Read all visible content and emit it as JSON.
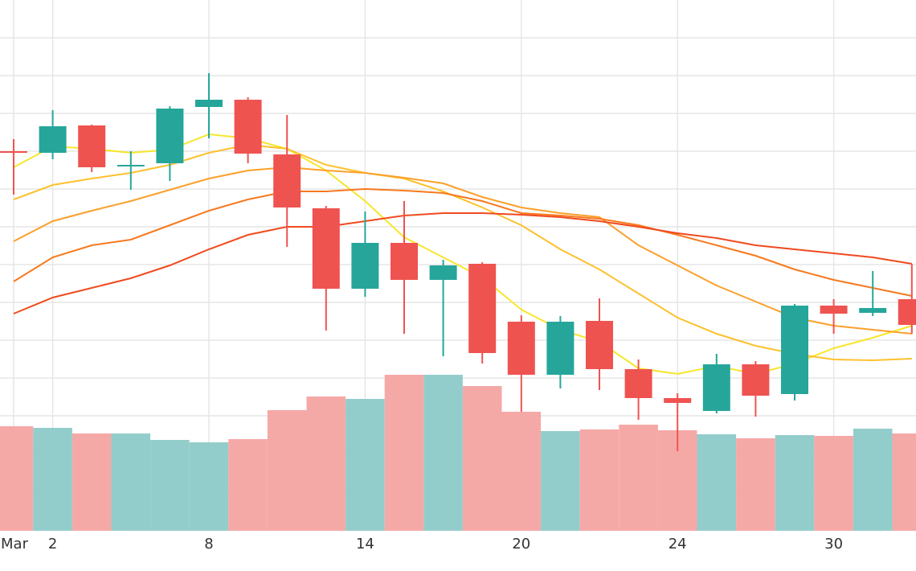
{
  "chart_data": {
    "type": "candlestick",
    "categories": [
      "Mar",
      "2",
      null,
      null,
      null,
      "8",
      null,
      null,
      null,
      "14",
      null,
      null,
      null,
      "20",
      null,
      null,
      null,
      "24",
      null,
      null,
      null,
      "30",
      null,
      null
    ],
    "open": [
      512,
      510,
      544,
      493,
      497,
      567,
      576,
      508,
      441,
      341,
      398,
      352,
      372,
      300,
      234,
      301,
      241,
      205,
      189,
      247,
      210,
      320,
      311,
      328
    ],
    "high": [
      527,
      563,
      545,
      512,
      568,
      609,
      579,
      557,
      444,
      437,
      450,
      377,
      374,
      308,
      307,
      329,
      253,
      211,
      260,
      251,
      322,
      328,
      363,
      372
    ],
    "low": [
      458,
      502,
      486,
      464,
      475,
      528,
      497,
      393,
      289,
      331,
      285,
      257,
      248,
      188,
      217,
      215,
      178,
      139,
      186,
      182,
      202,
      285,
      307,
      285
    ],
    "close": [
      511,
      543,
      492,
      495,
      565,
      576,
      509,
      442,
      341,
      398,
      352,
      370,
      261,
      234,
      300,
      241,
      205,
      199,
      247,
      208,
      320,
      310,
      317,
      296
    ],
    "up_color": "#26a69a",
    "down_color": "#ef5350",
    "ylim": [
      40,
      700
    ],
    "volume": {
      "values": [
        130,
        128,
        121,
        121,
        113,
        110,
        114,
        150,
        167,
        164,
        194,
        194,
        180,
        148,
        124,
        126,
        132,
        125,
        120,
        115,
        119,
        118,
        127,
        121
      ],
      "up_color": "#93cdcb",
      "down_color": "#f5a9a7",
      "ylim": [
        0,
        660
      ]
    },
    "moving_averages": [
      {
        "color": "#f7e62c",
        "values": [
          492,
          518,
          515,
          510,
          514,
          533,
          528,
          515,
          488,
          450,
          405,
          380,
          355,
          315,
          290,
          275,
          242,
          235,
          245,
          235,
          248,
          267,
          280,
          295
        ]
      },
      {
        "color": "#fcc12e",
        "values": [
          452,
          470,
          478,
          485,
          495,
          510,
          520,
          515,
          495,
          485,
          478,
          462,
          442,
          420,
          390,
          365,
          335,
          305,
          285,
          270,
          260,
          253,
          252,
          254
        ]
      },
      {
        "color": "#fba02a",
        "values": [
          400,
          425,
          438,
          450,
          464,
          478,
          488,
          492,
          488,
          485,
          479,
          472,
          455,
          442,
          435,
          430,
          395,
          370,
          345,
          325,
          305,
          295,
          290,
          285
        ]
      },
      {
        "color": "#f7791e",
        "values": [
          350,
          380,
          395,
          402,
          420,
          438,
          452,
          462,
          462,
          465,
          463,
          460,
          450,
          435,
          432,
          428,
          420,
          408,
          395,
          382,
          365,
          352,
          342,
          332
        ]
      },
      {
        "color": "#f04a1e",
        "values": [
          310,
          330,
          342,
          354,
          370,
          390,
          408,
          418,
          418,
          425,
          432,
          435,
          435,
          433,
          430,
          425,
          418,
          410,
          404,
          395,
          390,
          385,
          380,
          372
        ]
      }
    ],
    "grid": true
  }
}
